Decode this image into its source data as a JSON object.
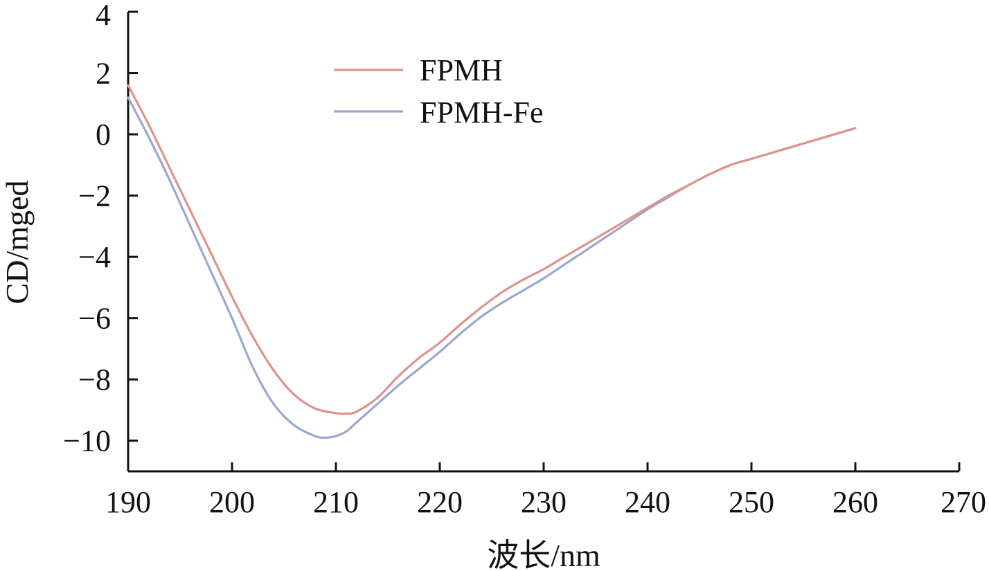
{
  "chart_data": {
    "type": "line",
    "xlabel": "波长/nm",
    "ylabel": "CD/mged",
    "xlim": [
      190,
      270
    ],
    "ylim": [
      -11,
      4
    ],
    "xticks": [
      190,
      200,
      210,
      220,
      230,
      240,
      250,
      260,
      270
    ],
    "yticks": [
      4,
      2,
      0,
      -2,
      -4,
      -6,
      -8,
      -10
    ],
    "xtick_labels": [
      "190",
      "200",
      "210",
      "220",
      "230",
      "240",
      "250",
      "260",
      "270"
    ],
    "ytick_labels": [
      "4",
      "2",
      "0",
      "−2",
      "−4",
      "−6",
      "−8",
      "−10"
    ],
    "grid": false,
    "legend_position": "top-left",
    "series": [
      {
        "name": "FPMH",
        "color": "#e0928a",
        "x": [
          190,
          192,
          194,
          196,
          198,
          200,
          202,
          204,
          206,
          208,
          210,
          211,
          212,
          214,
          216,
          218,
          220,
          222,
          224,
          226,
          228,
          230,
          232,
          234,
          236,
          238,
          240,
          242,
          244,
          246,
          248,
          250,
          252,
          254,
          256,
          258,
          260
        ],
        "y": [
          1.6,
          0.3,
          -1.1,
          -2.5,
          -3.9,
          -5.3,
          -6.6,
          -7.7,
          -8.5,
          -8.95,
          -9.1,
          -9.12,
          -9.05,
          -8.6,
          -7.9,
          -7.3,
          -6.8,
          -6.2,
          -5.65,
          -5.15,
          -4.75,
          -4.4,
          -4.0,
          -3.6,
          -3.2,
          -2.8,
          -2.4,
          -2.0,
          -1.65,
          -1.3,
          -1.0,
          -0.8,
          -0.6,
          -0.4,
          -0.2,
          0.0,
          0.2
        ]
      },
      {
        "name": "FPMH-Fe",
        "color": "#9aa7cf",
        "x": [
          190,
          192,
          194,
          196,
          198,
          200,
          202,
          204,
          206,
          208,
          209,
          210,
          211,
          212,
          214,
          216,
          218,
          220,
          222,
          224,
          226,
          228,
          230,
          232,
          234,
          236,
          238,
          240,
          242,
          244,
          246,
          248,
          250,
          252,
          254,
          256,
          258,
          260
        ],
        "y": [
          1.2,
          -0.1,
          -1.5,
          -3.0,
          -4.5,
          -6.0,
          -7.6,
          -8.8,
          -9.5,
          -9.85,
          -9.9,
          -9.85,
          -9.7,
          -9.4,
          -8.8,
          -8.2,
          -7.65,
          -7.1,
          -6.5,
          -5.95,
          -5.5,
          -5.1,
          -4.7,
          -4.25,
          -3.8,
          -3.35,
          -2.9,
          -2.45,
          -2.05,
          -1.65,
          -1.3,
          -1.0,
          -0.8,
          -0.6,
          -0.4,
          -0.2,
          0.0,
          0.2
        ]
      }
    ]
  }
}
